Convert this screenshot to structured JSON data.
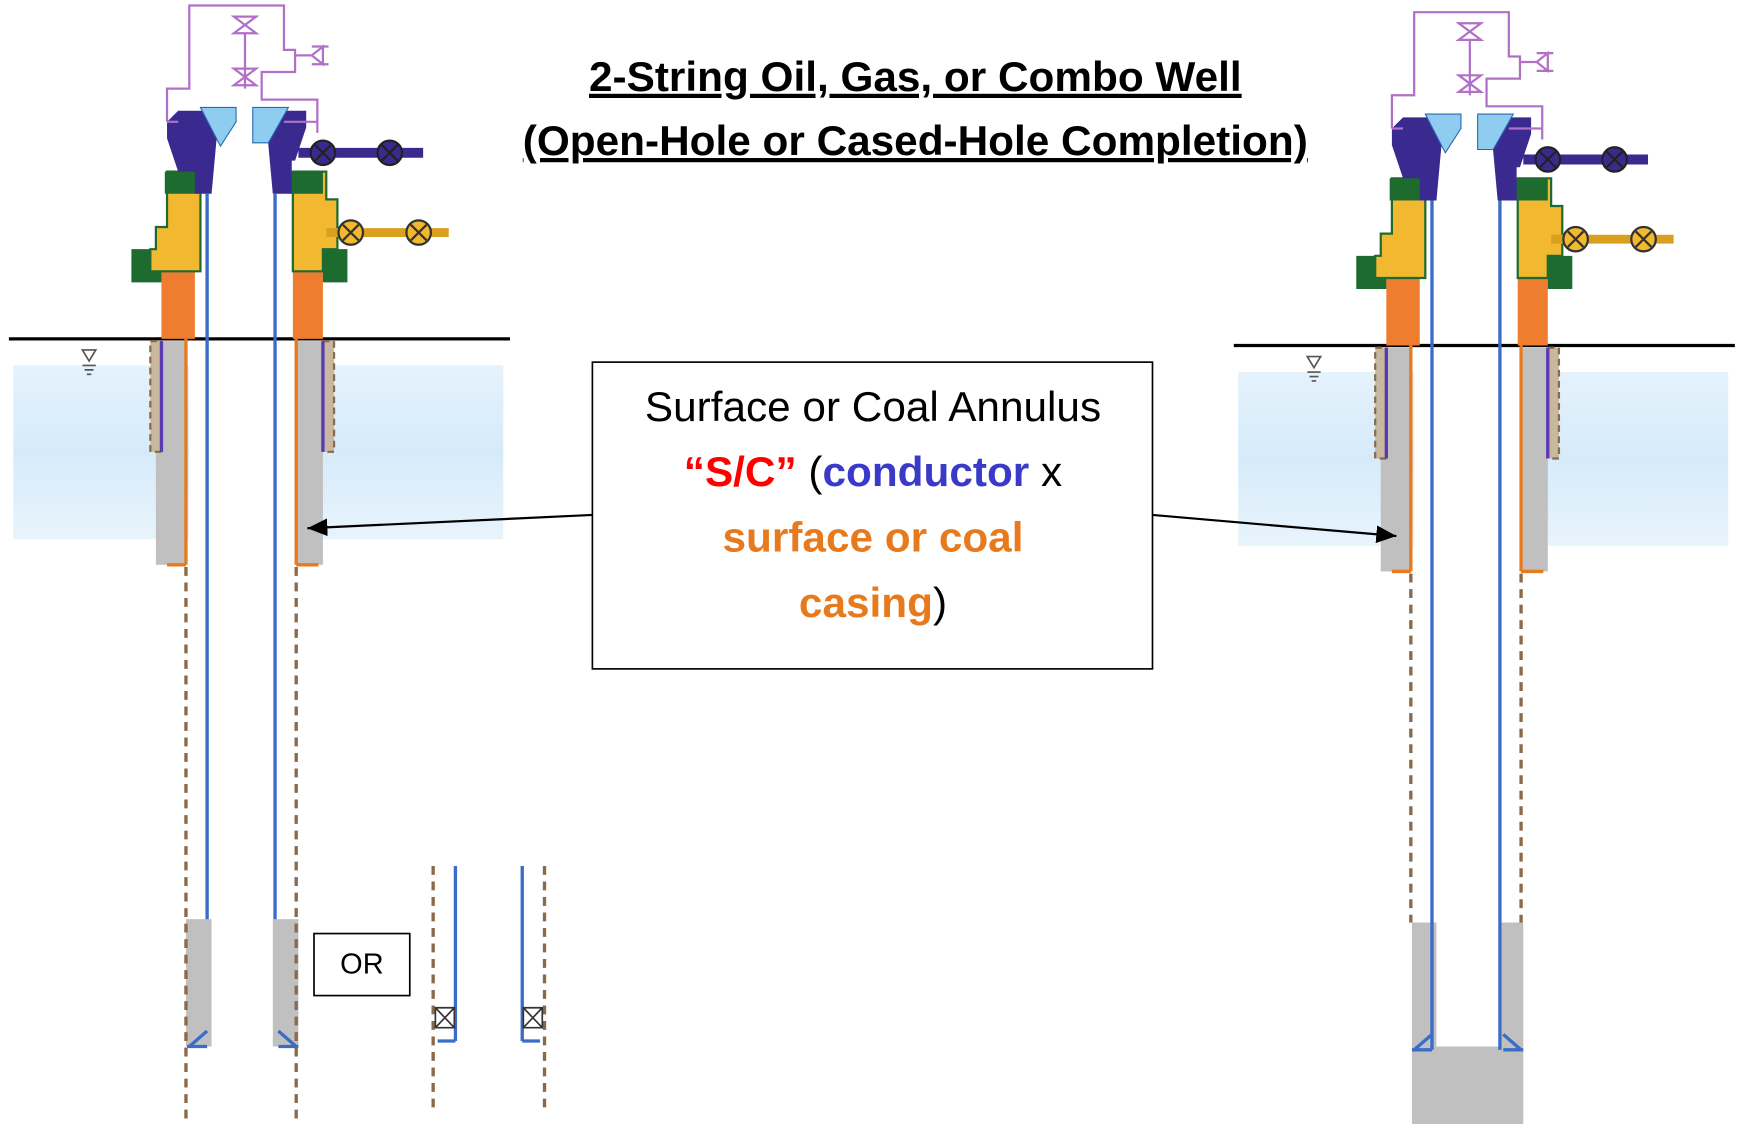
{
  "title": {
    "line1": "2-String Oil, Gas, or Combo Well",
    "line2": "(Open-Hole or Cased-Hole Completion)"
  },
  "callout": {
    "lines": [
      [
        "Surface or Coal Annulus"
      ],
      [
        "“S/C”",
        " (",
        "conductor",
        " x"
      ],
      [
        "surface or coal"
      ],
      [
        "casing",
        ")"
      ]
    ]
  },
  "or_label": "OR"
}
